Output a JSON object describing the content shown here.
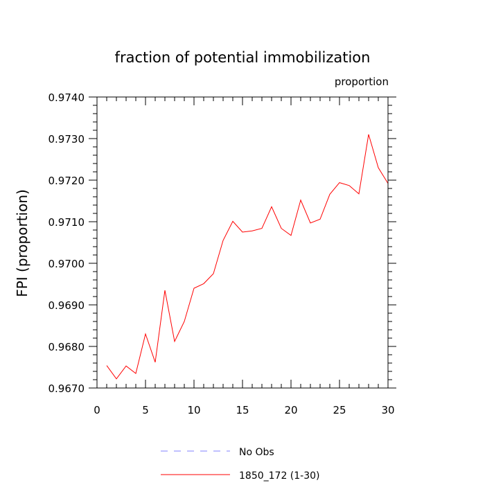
{
  "chart_data": {
    "type": "line",
    "title": "fraction of potential immobilization",
    "units_label": "proportion",
    "ylabel": "FPI  (proportion)",
    "xlabel": "",
    "xlim": [
      0,
      30
    ],
    "ylim": [
      0.967,
      0.974
    ],
    "x_ticks": [
      0,
      5,
      10,
      15,
      20,
      25,
      30
    ],
    "x_tick_labels": [
      "0",
      "5",
      "10",
      "15",
      "20",
      "25",
      "30"
    ],
    "y_ticks": [
      0.967,
      0.968,
      0.969,
      0.97,
      0.971,
      0.972,
      0.973,
      0.974
    ],
    "y_tick_labels": [
      "0.9670",
      "0.9680",
      "0.9690",
      "0.9700",
      "0.9710",
      "0.9720",
      "0.9730",
      "0.9740"
    ],
    "grid": false,
    "series": [
      {
        "name": "1850_172 (1-30)",
        "color": "#ff0000",
        "style": "solid",
        "x": [
          1,
          2,
          3,
          4,
          5,
          6,
          7,
          8,
          9,
          10,
          11,
          12,
          13,
          14,
          15,
          16,
          17,
          18,
          19,
          20,
          21,
          22,
          23,
          24,
          25,
          26,
          27,
          28,
          29,
          30
        ],
        "values": [
          0.96754,
          0.96722,
          0.96753,
          0.96735,
          0.9683,
          0.96762,
          0.96935,
          0.96812,
          0.9686,
          0.9694,
          0.96951,
          0.96975,
          0.97055,
          0.97101,
          0.97075,
          0.97078,
          0.97084,
          0.97136,
          0.97084,
          0.97067,
          0.97152,
          0.97097,
          0.97106,
          0.97166,
          0.97194,
          0.97187,
          0.97167,
          0.9731,
          0.9723,
          0.97192
        ]
      }
    ],
    "legend": [
      {
        "label": "No Obs",
        "color": "#8080ff",
        "style": "dashed"
      },
      {
        "label": "1850_172 (1-30)",
        "color": "#ff0000",
        "style": "solid"
      }
    ]
  }
}
